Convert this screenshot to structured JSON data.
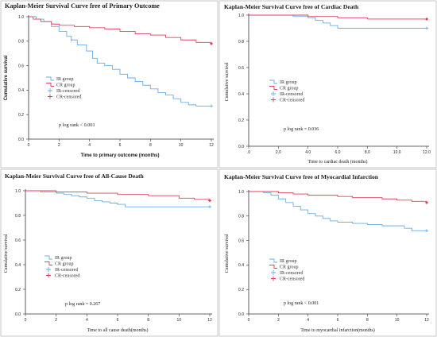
{
  "colors": {
    "IR": "#6aaee8",
    "CR": "#e0405a"
  },
  "chart_data": [
    {
      "type": "line",
      "title": "Kaplan-Meier Survival Curve free of Primary Outcome",
      "xlabel": "Time to primary outcome (months)",
      "ylabel": "Cumulative survival",
      "xticks": [
        0,
        2,
        4,
        6,
        8,
        10,
        12
      ],
      "xtick_labels": [
        "0",
        "2",
        "4",
        "6",
        "8",
        "10",
        "12"
      ],
      "yticks": [
        0.0,
        0.2,
        0.4,
        0.6,
        0.8,
        1.0
      ],
      "ytick_labels": [
        "0.0",
        "0.2",
        "0.4",
        "0.6",
        "0.8",
        "1.0"
      ],
      "xlim": [
        0,
        12
      ],
      "ylim": [
        0,
        1.0
      ],
      "legend": [
        "IR group",
        "CR group",
        "IR-censored",
        "CR-censored"
      ],
      "annotation": "p log rank < 0.001",
      "series": [
        {
          "name": "IR group",
          "x": [
            0,
            0.5,
            1,
            1.5,
            2,
            2.5,
            2.8,
            3.2,
            3.8,
            4.2,
            4.5,
            5,
            5.5,
            6,
            6.5,
            7,
            7.5,
            8,
            8.5,
            9,
            9.5,
            10,
            10.5,
            11,
            12
          ],
          "y": [
            1,
            0.98,
            0.96,
            0.92,
            0.88,
            0.84,
            0.81,
            0.77,
            0.72,
            0.66,
            0.62,
            0.6,
            0.57,
            0.53,
            0.5,
            0.47,
            0.44,
            0.41,
            0.38,
            0.36,
            0.33,
            0.3,
            0.28,
            0.27,
            0.27
          ]
        },
        {
          "name": "CR group",
          "x": [
            0,
            0.3,
            0.8,
            1.5,
            2,
            3,
            4,
            5,
            6,
            7,
            8,
            9,
            10,
            11,
            12
          ],
          "y": [
            1,
            0.98,
            0.96,
            0.94,
            0.93,
            0.92,
            0.91,
            0.9,
            0.88,
            0.86,
            0.85,
            0.83,
            0.81,
            0.79,
            0.78
          ]
        }
      ]
    },
    {
      "type": "line",
      "title": "Kaplan-Meier Survival Curve free of Cardiac Death",
      "xlabel": "Time to cardiac death (months)",
      "ylabel": "Cumulative survival",
      "xticks": [
        0,
        2,
        4,
        6,
        8,
        10,
        12
      ],
      "xtick_labels": [
        ".0",
        "2.0",
        "4.0",
        "6.0",
        "8.0",
        "10.0",
        "12.0"
      ],
      "yticks": [
        0.0,
        0.2,
        0.4,
        0.6,
        0.8,
        1.0
      ],
      "ytick_labels": [
        "0.0",
        "0.2",
        "0.4",
        "0.6",
        "0.8",
        "1.0"
      ],
      "xlim": [
        0,
        12
      ],
      "ylim": [
        0,
        1.0
      ],
      "legend": [
        "IR group",
        "CR group",
        "IR-censored",
        "CR-censored"
      ],
      "annotation": "p log rank = 0.036",
      "series": [
        {
          "name": "IR group",
          "x": [
            0,
            1,
            2,
            3,
            4,
            4.5,
            5,
            5.5,
            6,
            12
          ],
          "y": [
            1,
            1,
            1,
            0.99,
            0.98,
            0.96,
            0.94,
            0.92,
            0.9,
            0.9
          ]
        },
        {
          "name": "CR group",
          "x": [
            0,
            2,
            4,
            6,
            8,
            10,
            12
          ],
          "y": [
            1,
            1,
            0.99,
            0.98,
            0.97,
            0.97,
            0.97
          ]
        }
      ]
    },
    {
      "type": "line",
      "title": "Kaplan-Meier Survival Curve free of All-Cause Death",
      "xlabel": "Time to all cause death(months)",
      "ylabel": "Cumulative survival",
      "xticks": [
        0,
        2,
        4,
        6,
        8,
        10,
        12
      ],
      "xtick_labels": [
        "0",
        "2",
        "4",
        "6",
        "8",
        "10",
        "12"
      ],
      "yticks": [
        0.0,
        0.2,
        0.4,
        0.6,
        0.8,
        1.0
      ],
      "ytick_labels": [
        "0.0",
        "0.2",
        "0.4",
        "0.6",
        "0.8",
        "1.0"
      ],
      "xlim": [
        0,
        12
      ],
      "ylim": [
        0,
        1.0
      ],
      "legend": [
        "IR group",
        "CR group",
        "IR-censored",
        "CR-censored"
      ],
      "annotation": "p log rank = 0.267",
      "series": [
        {
          "name": "IR group",
          "x": [
            0,
            1,
            2,
            2.5,
            3,
            3.5,
            4,
            4.5,
            5,
            5.5,
            6,
            6.5,
            12
          ],
          "y": [
            1,
            0.99,
            0.98,
            0.97,
            0.96,
            0.95,
            0.94,
            0.92,
            0.91,
            0.9,
            0.89,
            0.87,
            0.87
          ]
        },
        {
          "name": "CR group",
          "x": [
            0,
            2,
            4,
            6,
            8,
            10,
            11,
            12
          ],
          "y": [
            1,
            0.99,
            0.98,
            0.97,
            0.96,
            0.94,
            0.93,
            0.92
          ]
        }
      ]
    },
    {
      "type": "line",
      "title": "Kaplan-Meier Survival Curve free of Myocardial Infarction",
      "xlabel": "Time to myocardial infarction(months)",
      "ylabel": "Cumulative survival",
      "xticks": [
        0,
        2,
        4,
        6,
        8,
        10,
        12
      ],
      "xtick_labels": [
        "0",
        "2",
        "4",
        "6",
        "8",
        "10",
        "12"
      ],
      "yticks": [
        0.0,
        0.2,
        0.4,
        0.6,
        0.8,
        1.0
      ],
      "ytick_labels": [
        "0.0",
        "0.2",
        "0.4",
        "0.6",
        "0.8",
        "1.0"
      ],
      "xlim": [
        0,
        12
      ],
      "ylim": [
        0,
        1.0
      ],
      "legend": [
        "IR group",
        "CR group",
        "IR-censored",
        "CR-censored"
      ],
      "annotation": "p log rank < 0.001",
      "series": [
        {
          "name": "IR group",
          "x": [
            0,
            1,
            1.5,
            2,
            2.5,
            3,
            3.5,
            4,
            4.5,
            5,
            5.5,
            6,
            7,
            8,
            9,
            10,
            10.5,
            11,
            12
          ],
          "y": [
            1,
            0.99,
            0.97,
            0.94,
            0.91,
            0.88,
            0.85,
            0.82,
            0.8,
            0.78,
            0.76,
            0.75,
            0.74,
            0.73,
            0.72,
            0.72,
            0.7,
            0.68,
            0.68
          ]
        },
        {
          "name": "CR group",
          "x": [
            0,
            1,
            2,
            3,
            4,
            5,
            6,
            7,
            8,
            9,
            10,
            11,
            12
          ],
          "y": [
            1,
            1,
            0.99,
            0.98,
            0.97,
            0.97,
            0.96,
            0.95,
            0.95,
            0.94,
            0.93,
            0.92,
            0.91
          ]
        }
      ]
    }
  ]
}
